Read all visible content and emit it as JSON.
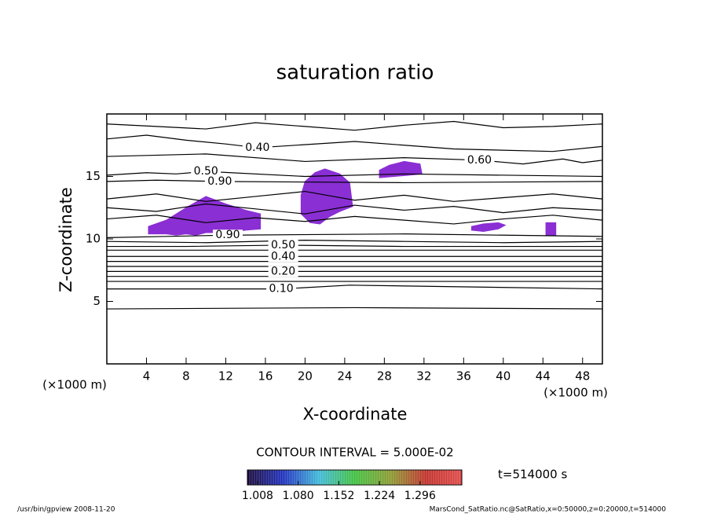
{
  "chart_data": {
    "type": "contour",
    "title": "saturation ratio",
    "x_label": "X-coordinate",
    "y_label": "Z-coordinate",
    "x_unit": "(×1000 m)",
    "y_unit": "(×1000 m)",
    "xlim": [
      0,
      50
    ],
    "ylim": [
      0,
      20
    ],
    "xticks": [
      4,
      8,
      12,
      16,
      20,
      24,
      28,
      32,
      36,
      40,
      44,
      48
    ],
    "yticks": [
      5,
      10,
      15
    ],
    "line_color": "#000000",
    "contour_interval": "CONTOUR INTERVAL = 5.000E-02",
    "contours": [
      {
        "x": [
          0,
          5,
          10,
          15,
          20,
          25,
          30,
          35,
          40,
          45,
          50
        ],
        "z": [
          19.2,
          19.0,
          18.8,
          19.3,
          19.0,
          18.7,
          19.1,
          19.4,
          18.9,
          19.0,
          19.2
        ]
      },
      {
        "label": "0.40",
        "x": [
          0,
          4,
          8,
          12,
          15.2,
          25,
          35,
          45,
          50
        ],
        "z": [
          18.0,
          18.3,
          17.9,
          17.6,
          17.3,
          17.8,
          17.2,
          17.0,
          17.4
        ]
      },
      {
        "label": "0.60",
        "x": [
          0,
          10,
          20,
          30,
          37.6,
          42,
          46,
          48,
          50
        ],
        "z": [
          16.6,
          16.8,
          16.2,
          16.5,
          16.3,
          16.0,
          16.4,
          16.1,
          16.3
        ]
      },
      {
        "label": "0.50",
        "x": [
          0,
          4,
          7,
          10,
          20,
          30,
          50
        ],
        "z": [
          15.1,
          15.3,
          15.2,
          15.4,
          15.0,
          15.2,
          15.0
        ]
      },
      {
        "label": "0.90",
        "x": [
          0,
          5,
          11.4,
          30,
          50
        ],
        "z": [
          14.6,
          14.7,
          14.6,
          14.5,
          14.6
        ]
      },
      {
        "x": [
          0,
          5,
          10,
          15,
          20,
          25,
          30,
          35,
          40,
          45,
          50
        ],
        "z": [
          13.2,
          13.6,
          13.0,
          13.4,
          13.8,
          13.1,
          13.5,
          13.0,
          13.3,
          13.6,
          13.2
        ]
      },
      {
        "x": [
          0,
          5,
          10,
          15,
          20,
          25,
          30,
          35,
          40,
          45,
          50
        ],
        "z": [
          12.5,
          12.2,
          12.8,
          12.4,
          12.0,
          12.7,
          12.3,
          12.6,
          12.1,
          12.5,
          12.3
        ]
      },
      {
        "x": [
          0,
          5,
          10,
          15,
          20,
          25,
          30,
          35,
          40,
          45,
          50
        ],
        "z": [
          11.6,
          11.9,
          11.3,
          11.7,
          11.4,
          11.8,
          11.5,
          11.2,
          11.6,
          11.9,
          11.5
        ]
      },
      {
        "label": "0.90",
        "x": [
          0,
          6,
          12.2,
          30,
          50
        ],
        "z": [
          10.1,
          10.2,
          10.3,
          10.4,
          10.2
        ]
      },
      {
        "x": [
          0,
          10,
          20,
          30,
          40,
          50
        ],
        "z": [
          9.8,
          9.7,
          9.9,
          9.8,
          9.7,
          9.8
        ]
      },
      {
        "label": "0.50",
        "x": [
          0,
          8,
          17.8,
          30,
          50
        ],
        "z": [
          9.4,
          9.4,
          9.5,
          9.4,
          9.4
        ]
      },
      {
        "x": [
          0,
          25,
          50
        ],
        "z": [
          9.1,
          9.1,
          9.1
        ]
      },
      {
        "label": "0.40",
        "x": [
          0,
          8,
          17.8,
          30,
          50
        ],
        "z": [
          8.6,
          8.6,
          8.6,
          8.6,
          8.6
        ]
      },
      {
        "x": [
          0,
          25,
          50
        ],
        "z": [
          8.2,
          8.2,
          8.2
        ]
      },
      {
        "x": [
          0,
          25,
          50
        ],
        "z": [
          7.8,
          7.8,
          7.8
        ]
      },
      {
        "label": "0.20",
        "x": [
          0,
          8,
          17.8,
          30,
          50
        ],
        "z": [
          7.4,
          7.4,
          7.4,
          7.4,
          7.4
        ]
      },
      {
        "x": [
          0,
          25,
          50
        ],
        "z": [
          7.0,
          7.0,
          7.0
        ]
      },
      {
        "x": [
          0,
          25,
          50
        ],
        "z": [
          6.6,
          6.6,
          6.6
        ]
      },
      {
        "label": "0.10",
        "x": [
          0,
          8,
          17.6,
          24.5,
          50
        ],
        "z": [
          6.0,
          6.0,
          6.0,
          6.3,
          6.0
        ]
      },
      {
        "x": [
          0,
          25,
          50
        ],
        "z": [
          4.4,
          4.5,
          4.4
        ]
      }
    ],
    "region_color": "#8a2fd4",
    "regions": [
      {
        "x": [
          4.2,
          6,
          7,
          8,
          9,
          10,
          11,
          12,
          13,
          14,
          15.5,
          15.5,
          14,
          12,
          10,
          8,
          6,
          4.2
        ],
        "z": [
          10.4,
          10.4,
          10.3,
          10.4,
          10.3,
          10.5,
          10.5,
          10.4,
          10.6,
          10.7,
          10.8,
          12,
          12.3,
          12.8,
          13.4,
          12.5,
          11.5,
          11.0
        ]
      },
      {
        "x": [
          19.6,
          20.5,
          21.5,
          22.5,
          23.5,
          24.8,
          24.5,
          23.5,
          22,
          21,
          20,
          19.6
        ],
        "z": [
          12.0,
          11.3,
          11.2,
          11.8,
          12.2,
          12.6,
          14.5,
          15.2,
          15.6,
          15.3,
          14.6,
          13.5
        ]
      },
      {
        "x": [
          27.5,
          29,
          30.5,
          31.8,
          31.6,
          30,
          28.5,
          27.5
        ],
        "z": [
          14.9,
          15.0,
          15.1,
          15.2,
          16.0,
          16.2,
          15.9,
          15.5
        ]
      },
      {
        "x": [
          36.8,
          38,
          39.5,
          40.2,
          39.5,
          38,
          36.8
        ],
        "z": [
          10.7,
          10.6,
          10.8,
          11.1,
          11.3,
          11.2,
          11.0
        ]
      },
      {
        "x": [
          44.3,
          45.3,
          45.3,
          44.3
        ],
        "z": [
          10.3,
          10.3,
          11.3,
          11.3
        ]
      }
    ],
    "colorbar": {
      "colors": [
        "#1a0a3a",
        "#1f2fbf",
        "#3fb8d8",
        "#3fbf3f",
        "#8a9a30",
        "#c0302a",
        "#e04a4a"
      ],
      "lim": [
        0.99,
        1.37
      ],
      "ticks": [
        1.008,
        {
          "value": 1.08,
          "label": "1.080"
        },
        1.152,
        1.224,
        1.296
      ]
    },
    "time_label": "t=514000 s",
    "footer_left": "/usr/bin/gpview  2008-11-20",
    "footer_right": "MarsCond_SatRatio.nc@SatRatio,x=0:50000,z=0:20000,t=514000"
  }
}
